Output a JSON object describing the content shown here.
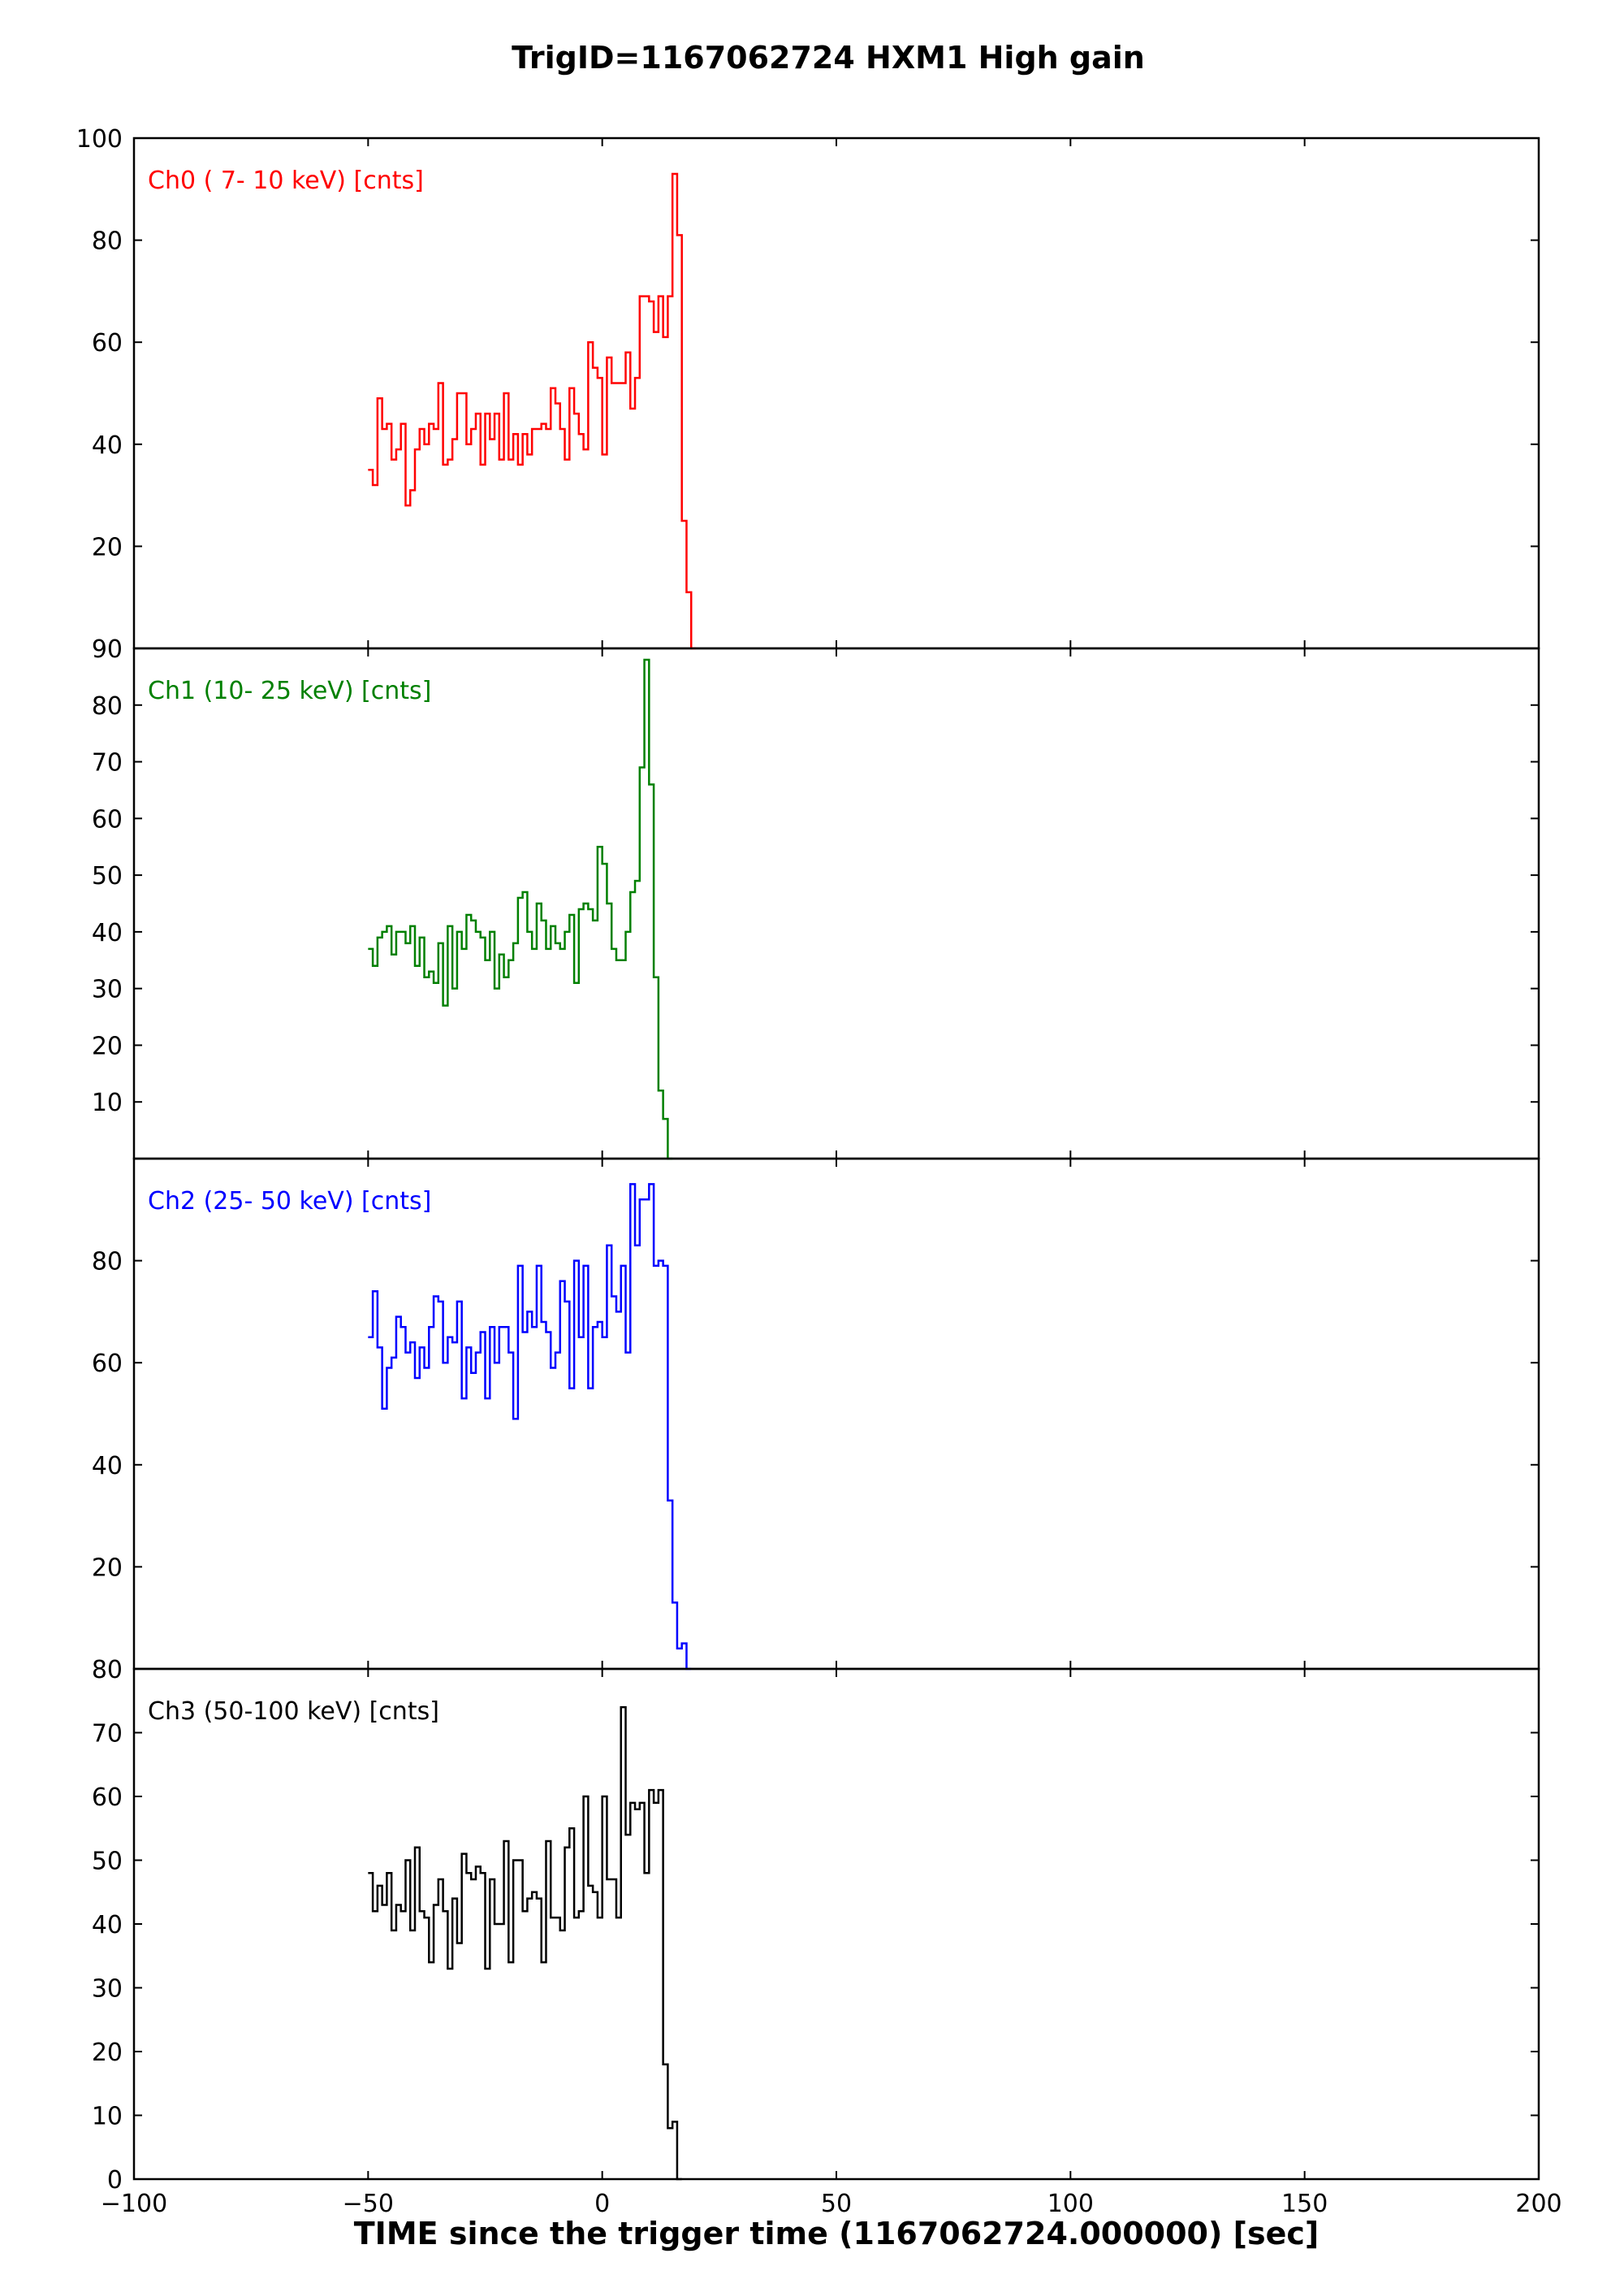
{
  "chart_data": {
    "type": "line",
    "style": "step",
    "title": "TrigID=1167062724 HXM1 High gain",
    "xlabel": "TIME since the trigger time (1167062724.000000) [sec]",
    "xlim": [
      -100,
      200
    ],
    "xticks": [
      -100,
      -50,
      0,
      50,
      100,
      150,
      200
    ],
    "xtick_labels": [
      "−100",
      "−50",
      "0",
      "50",
      "100",
      "150",
      "200"
    ],
    "grid": false,
    "bin_width": 1.0,
    "x_start": -50,
    "panels": [
      {
        "name": "Ch0 ( 7- 10 keV) [cnts]",
        "color": "#ff0000",
        "ylim": [
          0,
          100
        ],
        "yticks": [
          20,
          40,
          60,
          80,
          100
        ],
        "values": [
          35,
          32,
          49,
          43,
          44,
          37,
          39,
          44,
          28,
          31,
          39,
          43,
          40,
          44,
          43,
          52,
          36,
          37,
          41,
          50,
          50,
          40,
          43,
          46,
          36,
          46,
          41,
          46,
          37,
          50,
          37,
          42,
          36,
          42,
          38,
          43,
          43,
          44,
          43,
          51,
          48,
          43,
          37,
          51,
          46,
          42,
          39,
          60,
          55,
          53,
          38,
          57,
          52,
          52,
          52,
          58,
          47,
          53,
          69,
          69,
          68,
          62,
          69,
          61,
          69,
          93,
          81,
          25,
          11,
          0
        ]
      },
      {
        "name": "Ch1 (10- 25 keV) [cnts]",
        "color": "#008000",
        "ylim": [
          0,
          90
        ],
        "yticks": [
          10,
          20,
          30,
          40,
          50,
          60,
          70,
          80,
          90
        ],
        "values": [
          37,
          34,
          39,
          40,
          41,
          36,
          40,
          40,
          38,
          41,
          34,
          39,
          32,
          33,
          31,
          38,
          27,
          41,
          30,
          40,
          37,
          43,
          42,
          40,
          39,
          35,
          40,
          30,
          36,
          32,
          35,
          38,
          46,
          47,
          40,
          37,
          45,
          42,
          37,
          41,
          38,
          37,
          40,
          43,
          31,
          44,
          45,
          44,
          42,
          55,
          52,
          45,
          37,
          35,
          35,
          40,
          47,
          49,
          69,
          88,
          66,
          32,
          12,
          7,
          0
        ]
      },
      {
        "name": "Ch2 (25- 50 keV) [cnts]",
        "color": "#0000ff",
        "ylim": [
          0,
          100
        ],
        "yticks": [
          20,
          40,
          60,
          80
        ],
        "values": [
          65,
          74,
          63,
          51,
          59,
          61,
          69,
          67,
          62,
          64,
          57,
          63,
          59,
          67,
          73,
          72,
          60,
          65,
          64,
          72,
          53,
          63,
          58,
          62,
          66,
          53,
          67,
          60,
          67,
          67,
          62,
          49,
          79,
          66,
          70,
          67,
          79,
          68,
          66,
          59,
          62,
          76,
          72,
          55,
          80,
          65,
          79,
          55,
          67,
          68,
          65,
          83,
          73,
          70,
          79,
          62,
          95,
          83,
          92,
          92,
          95,
          79,
          80,
          79,
          33,
          13,
          4,
          5,
          0
        ]
      },
      {
        "name": "Ch3 (50-100 keV) [cnts]",
        "color": "#000000",
        "ylim": [
          0,
          80
        ],
        "yticks": [
          0,
          10,
          20,
          30,
          40,
          50,
          60,
          70,
          80
        ],
        "values": [
          48,
          42,
          46,
          43,
          48,
          39,
          43,
          42,
          50,
          39,
          52,
          42,
          41,
          34,
          43,
          47,
          42,
          33,
          44,
          37,
          51,
          48,
          47,
          49,
          48,
          33,
          47,
          40,
          40,
          53,
          34,
          50,
          50,
          42,
          44,
          45,
          44,
          34,
          53,
          41,
          41,
          39,
          52,
          55,
          41,
          42,
          60,
          46,
          45,
          41,
          60,
          47,
          47,
          41,
          74,
          54,
          59,
          58,
          59,
          48,
          61,
          59,
          61,
          18,
          8,
          9,
          0
        ]
      }
    ]
  }
}
